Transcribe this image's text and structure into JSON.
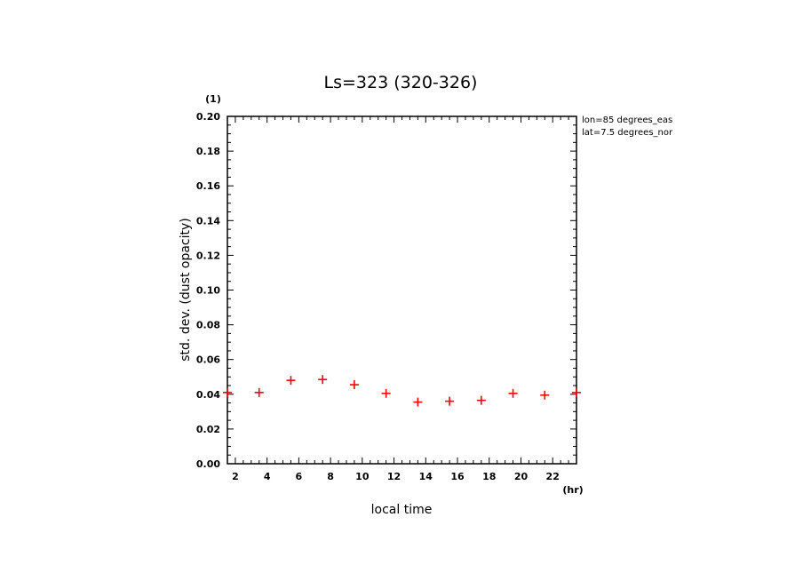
{
  "chart_data": {
    "type": "scatter",
    "title": "Ls=323 (320-326)",
    "xlabel": "local time",
    "ylabel": "std. dev. (dust opacity)",
    "x_unit": "(hr)",
    "y_unit": "(1)",
    "xlim": [
      1.5,
      23.5
    ],
    "ylim": [
      0,
      0.2
    ],
    "x_ticks": [
      "2",
      "4",
      "6",
      "8",
      "10",
      "12",
      "14",
      "16",
      "18",
      "20",
      "22"
    ],
    "y_ticks": [
      "0.00",
      "0.02",
      "0.04",
      "0.06",
      "0.08",
      "0.10",
      "0.12",
      "0.14",
      "0.16",
      "0.18",
      "0.20"
    ],
    "annotations": [
      "lon=85 degrees_eas",
      "lat=7.5 degrees_nor"
    ],
    "marker": "+",
    "marker_color": "#ff0000",
    "points": [
      {
        "x": 1.5,
        "y": 0.041
      },
      {
        "x": 3.5,
        "y": 0.041
      },
      {
        "x": 5.5,
        "y": 0.048
      },
      {
        "x": 7.5,
        "y": 0.0485
      },
      {
        "x": 9.5,
        "y": 0.0455
      },
      {
        "x": 11.5,
        "y": 0.0405
      },
      {
        "x": 13.5,
        "y": 0.0355
      },
      {
        "x": 15.5,
        "y": 0.036
      },
      {
        "x": 17.5,
        "y": 0.0365
      },
      {
        "x": 19.5,
        "y": 0.0405
      },
      {
        "x": 21.5,
        "y": 0.0395
      },
      {
        "x": 23.5,
        "y": 0.041
      }
    ],
    "grid": false
  }
}
